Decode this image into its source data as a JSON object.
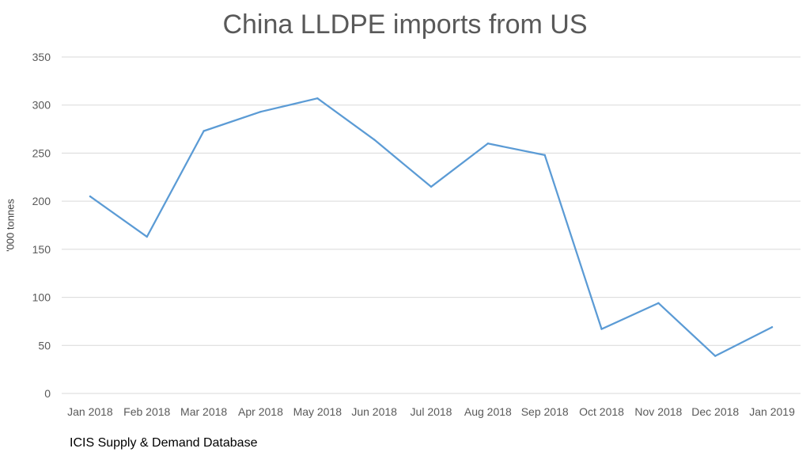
{
  "chart_data": {
    "type": "line",
    "title": "China LLDPE imports from US",
    "ylabel": "'000 tonnes",
    "xlabel": "",
    "source": "ICIS Supply & Demand Database",
    "categories": [
      "Jan 2018",
      "Feb 2018",
      "Mar 2018",
      "Apr 2018",
      "May 2018",
      "Jun 2018",
      "Jul 2018",
      "Aug 2018",
      "Sep 2018",
      "Oct 2018",
      "Nov 2018",
      "Dec 2018",
      "Jan 2019"
    ],
    "series": [
      {
        "values": [
          205,
          163,
          273,
          293,
          307,
          264,
          215,
          260,
          248,
          67,
          94,
          39,
          69
        ]
      }
    ],
    "ylim": [
      0,
      350
    ],
    "yticks": [
      0,
      50,
      100,
      150,
      200,
      250,
      300,
      350
    ],
    "grid": true,
    "legend": "none",
    "colors": {
      "line": "#5b9bd5",
      "grid": "#d9d9d9",
      "axis_text": "#595959"
    }
  }
}
